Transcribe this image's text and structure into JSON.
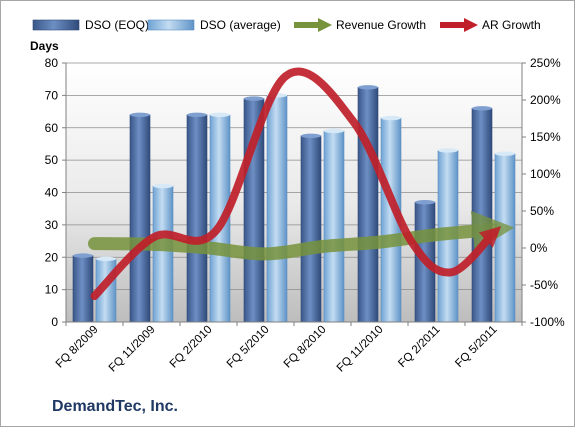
{
  "company": "DemandTec, Inc.",
  "chart_data": {
    "type": "bar",
    "categories": [
      "FQ 8/2009",
      "FQ 11/2009",
      "FQ 2/2010",
      "FQ 5/2010",
      "FQ 8/2010",
      "FQ 11/2010",
      "FQ 2/2011",
      "FQ 5/2011"
    ],
    "y_left_label": "Days",
    "y_left_lim": [
      0,
      80
    ],
    "y_left_ticks": [
      "0",
      "10",
      "20",
      "30",
      "40",
      "50",
      "60",
      "70",
      "80"
    ],
    "y_right_lim": [
      -100,
      250
    ],
    "y_right_ticks": [
      "-100%",
      "-50%",
      "0%",
      "50%",
      "100%",
      "150%",
      "200%",
      "250%"
    ],
    "bar_series": [
      {
        "name": "DSO (EOQ)",
        "color": "#4f6fa6",
        "values": [
          20.5,
          64,
          64,
          69,
          57.5,
          72.5,
          37,
          66
        ]
      },
      {
        "name": "DSO (average)",
        "color": "#9dc3e6",
        "values": [
          19.5,
          42,
          64,
          70,
          59,
          63,
          53,
          52
        ]
      }
    ],
    "line_series": [
      {
        "name": "Revenue Growth",
        "color": "#77933c",
        "unit": "%",
        "x": [
          0,
          1,
          2,
          3,
          4,
          5,
          6,
          7
        ],
        "values": [
          6,
          5,
          0,
          -8,
          2,
          8,
          18,
          25
        ]
      },
      {
        "name": "AR Growth",
        "color": "#c0202a",
        "unit": "%",
        "x": [
          0,
          1.05,
          2.15,
          3.35,
          4.55,
          5.55,
          6.25,
          7
        ],
        "values": [
          -65,
          15,
          25,
          232,
          170,
          10,
          -33,
          20
        ]
      }
    ],
    "legend_position": "top",
    "grid": true
  }
}
